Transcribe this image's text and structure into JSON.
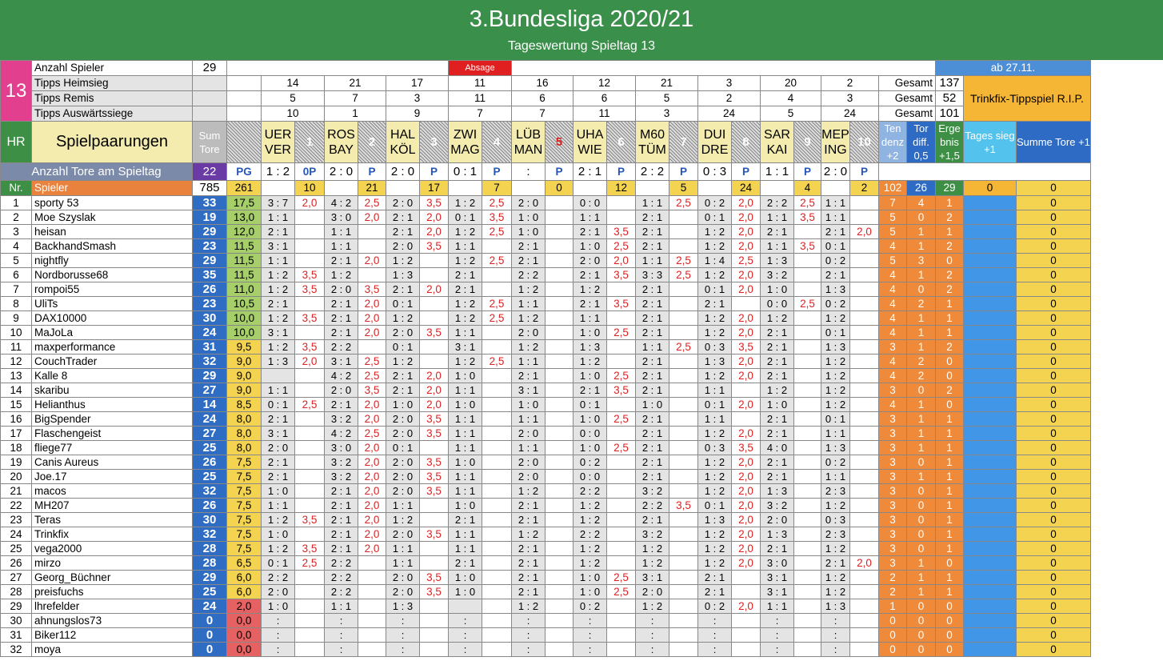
{
  "title": "3.Bundesliga 2020/21",
  "subtitle": "Tageswertung Spieltag 13",
  "matchday": "13",
  "info": {
    "anzahl_label": "Anzahl Spieler",
    "anzahl_value": "29",
    "absage": "Absage",
    "ab_date": "ab 27.11.",
    "heim_label": "Tipps Heimsieg",
    "remis_label": "Tipps Remis",
    "ausw_label": "Tipps Auswärtssiege",
    "heim": [
      "14",
      "21",
      "17",
      "11",
      "16",
      "12",
      "21",
      "3",
      "20",
      "2"
    ],
    "remis": [
      "5",
      "7",
      "3",
      "11",
      "6",
      "6",
      "5",
      "2",
      "4",
      "3"
    ],
    "ausw": [
      "10",
      "1",
      "9",
      "7",
      "7",
      "11",
      "3",
      "24",
      "5",
      "24"
    ],
    "gesamt_label": "Gesamt",
    "gesamt": [
      "137",
      "52",
      "101"
    ],
    "trinkfix": "Trinkfix-Tippspiel R.I.P."
  },
  "header": {
    "hr": "HR",
    "spielpaarungen": "Spielpaarungen",
    "sum_tore": "Sum Tore",
    "matches": [
      {
        "home": "UER",
        "away": "VER",
        "n": "1"
      },
      {
        "home": "ROS",
        "away": "BAY",
        "n": "2"
      },
      {
        "home": "HAL",
        "away": "KÖL",
        "n": "3"
      },
      {
        "home": "ZWI",
        "away": "MAG",
        "n": "4"
      },
      {
        "home": "LÜB",
        "away": "MAN",
        "n": "5"
      },
      {
        "home": "UHA",
        "away": "WIE",
        "n": "6"
      },
      {
        "home": "M60",
        "away": "TÜM",
        "n": "7"
      },
      {
        "home": "DUI",
        "away": "DRE",
        "n": "8"
      },
      {
        "home": "SAR",
        "away": "KAI",
        "n": "9"
      },
      {
        "home": "MEP",
        "away": "ING",
        "n": "10"
      }
    ],
    "tendenz": "Ten denz +2",
    "tordiff": "Tor diff. 0,5",
    "ergebnis": "Erge bnis +1,5",
    "tagessieg": "Tages sieg +1",
    "summetore": "Summe Tore +1"
  },
  "results": {
    "label": "Anzahl Tore am Spieltag",
    "total": "22",
    "pg": "PG",
    "scores": [
      "1 : 2",
      "2 : 0",
      "2 : 0",
      "0 : 1",
      ":",
      "2 : 1",
      "2 : 2",
      "0 : 3",
      "1 : 1",
      "2 : 0"
    ],
    "marks": [
      "0P",
      "P",
      "P",
      "P",
      "P",
      "P",
      "P",
      "P",
      "P",
      "P"
    ]
  },
  "totals": {
    "nr": "Nr.",
    "spieler": "Spieler",
    "sum": "785",
    "pg": "261",
    "points": [
      "10",
      "21",
      "17",
      "7",
      "0",
      "12",
      "5",
      "24",
      "4",
      "2"
    ],
    "ten": "102",
    "tor": "26",
    "erg": "29",
    "tag": "0",
    "sumt": "0"
  },
  "players": [
    {
      "nr": "1",
      "name": "sporty 53",
      "sum": "33",
      "pg": "17,5",
      "tips": [
        "3 : 7",
        "4 : 2",
        "2 : 0",
        "1 : 2",
        "2 : 0",
        "0 : 0",
        "1 : 1",
        "0 : 2",
        "2 : 2",
        "1 : 1"
      ],
      "pts": [
        "2,0",
        "2,5",
        "3,5",
        "2,5",
        "",
        "",
        "2,5",
        "2,0",
        "2,5",
        ""
      ],
      "ten": "7",
      "tor": "4",
      "erg": "1",
      "tag": "",
      "sumt": "0"
    },
    {
      "nr": "2",
      "name": "Moe Szyslak",
      "sum": "19",
      "pg": "13,0",
      "tips": [
        "1 : 1",
        "3 : 0",
        "2 : 1",
        "0 : 1",
        "1 : 0",
        "1 : 1",
        "2 : 1",
        "0 : 1",
        "1 : 1",
        "1 : 1"
      ],
      "pts": [
        "",
        "2,0",
        "2,0",
        "3,5",
        "",
        "",
        "",
        "2,0",
        "3,5",
        ""
      ],
      "ten": "5",
      "tor": "0",
      "erg": "2",
      "tag": "",
      "sumt": "0"
    },
    {
      "nr": "3",
      "name": "heisan",
      "sum": "29",
      "pg": "12,0",
      "tips": [
        "2 : 1",
        "1 : 1",
        "2 : 1",
        "1 : 2",
        "1 : 0",
        "2 : 1",
        "2 : 1",
        "1 : 2",
        "2 : 1",
        "2 : 1"
      ],
      "pts": [
        "",
        "",
        "2,0",
        "2,5",
        "",
        "3,5",
        "",
        "2,0",
        "",
        "2,0"
      ],
      "ten": "5",
      "tor": "1",
      "erg": "1",
      "tag": "",
      "sumt": "0"
    },
    {
      "nr": "4",
      "name": "BackhandSmash",
      "sum": "23",
      "pg": "11,5",
      "tips": [
        "3 : 1",
        "1 : 1",
        "2 : 0",
        "1 : 1",
        "2 : 1",
        "1 : 0",
        "2 : 1",
        "1 : 2",
        "1 : 1",
        "0 : 1"
      ],
      "pts": [
        "",
        "",
        "3,5",
        "",
        "",
        "2,5",
        "",
        "2,0",
        "3,5",
        ""
      ],
      "ten": "4",
      "tor": "1",
      "erg": "2",
      "tag": "",
      "sumt": "0"
    },
    {
      "nr": "5",
      "name": "nightfly",
      "sum": "29",
      "pg": "11,5",
      "tips": [
        "1 : 1",
        "2 : 1",
        "1 : 2",
        "1 : 2",
        "2 : 1",
        "2 : 0",
        "1 : 1",
        "1 : 4",
        "1 : 3",
        "0 : 2"
      ],
      "pts": [
        "",
        "2,0",
        "",
        "2,5",
        "",
        "2,0",
        "2,5",
        "2,5",
        "",
        ""
      ],
      "ten": "5",
      "tor": "3",
      "erg": "0",
      "tag": "",
      "sumt": "0"
    },
    {
      "nr": "6",
      "name": "Nordborusse68",
      "sum": "35",
      "pg": "11,5",
      "tips": [
        "1 : 2",
        "1 : 2",
        "1 : 3",
        "2 : 1",
        "2 : 2",
        "2 : 1",
        "3 : 3",
        "1 : 2",
        "3 : 2",
        "2 : 1"
      ],
      "pts": [
        "3,5",
        "",
        "",
        "",
        "",
        "3,5",
        "2,5",
        "2,0",
        "",
        ""
      ],
      "ten": "4",
      "tor": "1",
      "erg": "2",
      "tag": "",
      "sumt": "0"
    },
    {
      "nr": "7",
      "name": "rompoi55",
      "sum": "26",
      "pg": "11,0",
      "tips": [
        "1 : 2",
        "2 : 0",
        "2 : 1",
        "2 : 1",
        "1 : 2",
        "1 : 2",
        "2 : 1",
        "0 : 1",
        "1 : 0",
        "1 : 3"
      ],
      "pts": [
        "3,5",
        "3,5",
        "2,0",
        "",
        "",
        "",
        "",
        "2,0",
        "",
        ""
      ],
      "ten": "4",
      "tor": "0",
      "erg": "2",
      "tag": "",
      "sumt": "0"
    },
    {
      "nr": "8",
      "name": "UliTs",
      "sum": "23",
      "pg": "10,5",
      "tips": [
        "2 : 1",
        "2 : 1",
        "0 : 1",
        "1 : 2",
        "1 : 1",
        "2 : 1",
        "2 : 1",
        "2 : 1",
        "0 : 0",
        "0 : 2"
      ],
      "pts": [
        "",
        "2,0",
        "",
        "2,5",
        "",
        "3,5",
        "",
        "",
        "2,5",
        ""
      ],
      "ten": "4",
      "tor": "2",
      "erg": "1",
      "tag": "",
      "sumt": "0"
    },
    {
      "nr": "9",
      "name": "DAX10000",
      "sum": "30",
      "pg": "10,0",
      "tips": [
        "1 : 2",
        "2 : 1",
        "1 : 2",
        "1 : 2",
        "1 : 2",
        "1 : 1",
        "2 : 1",
        "1 : 2",
        "1 : 2",
        "1 : 2"
      ],
      "pts": [
        "3,5",
        "2,0",
        "",
        "2,5",
        "",
        "",
        "",
        "2,0",
        "",
        ""
      ],
      "ten": "4",
      "tor": "1",
      "erg": "1",
      "tag": "",
      "sumt": "0"
    },
    {
      "nr": "10",
      "name": "MaJoLa",
      "sum": "24",
      "pg": "10,0",
      "tips": [
        "3 : 1",
        "2 : 1",
        "2 : 0",
        "1 : 1",
        "2 : 0",
        "1 : 0",
        "2 : 1",
        "1 : 2",
        "2 : 1",
        "0 : 1"
      ],
      "pts": [
        "",
        "2,0",
        "3,5",
        "",
        "",
        "2,5",
        "",
        "2,0",
        "",
        ""
      ],
      "ten": "4",
      "tor": "1",
      "erg": "1",
      "tag": "",
      "sumt": "0"
    },
    {
      "nr": "11",
      "name": "maxperformance",
      "sum": "31",
      "pg": "9,5",
      "tips": [
        "1 : 2",
        "2 : 2",
        "0 : 1",
        "3 : 1",
        "1 : 2",
        "1 : 3",
        "1 : 1",
        "0 : 3",
        "2 : 1",
        "1 : 3"
      ],
      "pts": [
        "3,5",
        "",
        "",
        "",
        "",
        "",
        "2,5",
        "3,5",
        "",
        ""
      ],
      "ten": "3",
      "tor": "1",
      "erg": "2",
      "tag": "",
      "sumt": "0"
    },
    {
      "nr": "12",
      "name": "CouchTrader",
      "sum": "32",
      "pg": "9,0",
      "tips": [
        "1 : 3",
        "3 : 1",
        "1 : 2",
        "1 : 2",
        "1 : 1",
        "1 : 2",
        "2 : 1",
        "1 : 3",
        "2 : 1",
        "1 : 2"
      ],
      "pts": [
        "2,0",
        "2,5",
        "",
        "2,5",
        "",
        "",
        "",
        "2,0",
        "",
        ""
      ],
      "ten": "4",
      "tor": "2",
      "erg": "0",
      "tag": "",
      "sumt": "0"
    },
    {
      "nr": "13",
      "name": "Kalle 8",
      "sum": "29",
      "pg": "9,0",
      "tips": [
        "",
        "4 : 2",
        "2 : 1",
        "1 : 0",
        "2 : 1",
        "1 : 0",
        "2 : 1",
        "1 : 2",
        "2 : 1",
        "1 : 2"
      ],
      "pts": [
        "",
        "2,5",
        "2,0",
        "",
        "",
        "2,5",
        "",
        "2,0",
        "",
        ""
      ],
      "ten": "4",
      "tor": "2",
      "erg": "0",
      "tag": "",
      "sumt": "0"
    },
    {
      "nr": "14",
      "name": "skaribu",
      "sum": "27",
      "pg": "9,0",
      "tips": [
        "1 : 1",
        "2 : 0",
        "2 : 1",
        "1 : 1",
        "3 : 1",
        "2 : 1",
        "2 : 1",
        "1 : 1",
        "1 : 2",
        "1 : 2"
      ],
      "pts": [
        "",
        "3,5",
        "2,0",
        "",
        "",
        "3,5",
        "",
        "",
        "",
        ""
      ],
      "ten": "3",
      "tor": "0",
      "erg": "2",
      "tag": "",
      "sumt": "0"
    },
    {
      "nr": "15",
      "name": "Helianthus",
      "sum": "14",
      "pg": "8,5",
      "tips": [
        "0 : 1",
        "2 : 1",
        "1 : 0",
        "1 : 0",
        "1 : 0",
        "0 : 1",
        "1 : 0",
        "0 : 1",
        "1 : 0",
        "1 : 2"
      ],
      "pts": [
        "2,5",
        "2,0",
        "2,0",
        "",
        "",
        "",
        "",
        "2,0",
        "",
        ""
      ],
      "ten": "4",
      "tor": "1",
      "erg": "0",
      "tag": "",
      "sumt": "0"
    },
    {
      "nr": "16",
      "name": "BigSpender",
      "sum": "24",
      "pg": "8,0",
      "tips": [
        "2 : 1",
        "3 : 2",
        "2 : 0",
        "1 : 1",
        "1 : 1",
        "1 : 0",
        "2 : 1",
        "1 : 1",
        "2 : 1",
        "0 : 1"
      ],
      "pts": [
        "",
        "2,0",
        "3,5",
        "",
        "",
        "2,5",
        "",
        "",
        "",
        ""
      ],
      "ten": "3",
      "tor": "1",
      "erg": "1",
      "tag": "",
      "sumt": "0"
    },
    {
      "nr": "17",
      "name": "Flaschengeist",
      "sum": "27",
      "pg": "8,0",
      "tips": [
        "3 : 1",
        "4 : 2",
        "2 : 0",
        "1 : 1",
        "2 : 0",
        "0 : 0",
        "2 : 1",
        "1 : 2",
        "2 : 1",
        "1 : 1"
      ],
      "pts": [
        "",
        "2,5",
        "3,5",
        "",
        "",
        "",
        "",
        "2,0",
        "",
        ""
      ],
      "ten": "3",
      "tor": "1",
      "erg": "1",
      "tag": "",
      "sumt": "0"
    },
    {
      "nr": "18",
      "name": "fliege77",
      "sum": "25",
      "pg": "8,0",
      "tips": [
        "2 : 0",
        "3 : 0",
        "0 : 1",
        "1 : 1",
        "1 : 1",
        "1 : 0",
        "2 : 1",
        "0 : 3",
        "4 : 0",
        "1 : 3"
      ],
      "pts": [
        "",
        "2,0",
        "",
        "",
        "",
        "2,5",
        "",
        "3,5",
        "",
        ""
      ],
      "ten": "3",
      "tor": "1",
      "erg": "1",
      "tag": "",
      "sumt": "0"
    },
    {
      "nr": "19",
      "name": "Canis Aureus",
      "sum": "26",
      "pg": "7,5",
      "tips": [
        "2 : 1",
        "3 : 2",
        "2 : 0",
        "1 : 0",
        "2 : 0",
        "0 : 2",
        "2 : 1",
        "1 : 2",
        "2 : 1",
        "0 : 2"
      ],
      "pts": [
        "",
        "2,0",
        "3,5",
        "",
        "",
        "",
        "",
        "2,0",
        "",
        ""
      ],
      "ten": "3",
      "tor": "0",
      "erg": "1",
      "tag": "",
      "sumt": "0"
    },
    {
      "nr": "20",
      "name": "Joe.17",
      "sum": "25",
      "pg": "7,5",
      "tips": [
        "2 : 1",
        "3 : 2",
        "2 : 0",
        "1 : 1",
        "2 : 0",
        "0 : 0",
        "2 : 1",
        "1 : 2",
        "2 : 1",
        "1 : 1"
      ],
      "pts": [
        "",
        "2,0",
        "3,5",
        "",
        "",
        "",
        "",
        "2,0",
        "",
        ""
      ],
      "ten": "3",
      "tor": "1",
      "erg": "1",
      "tag": "",
      "sumt": "0"
    },
    {
      "nr": "21",
      "name": "macos",
      "sum": "32",
      "pg": "7,5",
      "tips": [
        "1 : 0",
        "2 : 1",
        "2 : 0",
        "1 : 1",
        "1 : 2",
        "2 : 2",
        "3 : 2",
        "1 : 2",
        "1 : 3",
        "2 : 3"
      ],
      "pts": [
        "",
        "2,0",
        "3,5",
        "",
        "",
        "",
        "",
        "2,0",
        "",
        ""
      ],
      "ten": "3",
      "tor": "0",
      "erg": "1",
      "tag": "",
      "sumt": "0"
    },
    {
      "nr": "22",
      "name": "MH207",
      "sum": "26",
      "pg": "7,5",
      "tips": [
        "1 : 1",
        "2 : 1",
        "1 : 1",
        "1 : 0",
        "2 : 1",
        "1 : 2",
        "2 : 2",
        "0 : 1",
        "3 : 2",
        "1 : 2"
      ],
      "pts": [
        "",
        "2,0",
        "",
        "",
        "",
        "",
        "3,5",
        "2,0",
        "",
        ""
      ],
      "ten": "3",
      "tor": "0",
      "erg": "1",
      "tag": "",
      "sumt": "0"
    },
    {
      "nr": "23",
      "name": "Teras",
      "sum": "30",
      "pg": "7,5",
      "tips": [
        "1 : 2",
        "2 : 1",
        "1 : 2",
        "2 : 1",
        "2 : 1",
        "1 : 2",
        "2 : 1",
        "1 : 3",
        "2 : 0",
        "0 : 3"
      ],
      "pts": [
        "3,5",
        "2,0",
        "",
        "",
        "",
        "",
        "",
        "2,0",
        "",
        ""
      ],
      "ten": "3",
      "tor": "0",
      "erg": "1",
      "tag": "",
      "sumt": "0"
    },
    {
      "nr": "24",
      "name": "Trinkfix",
      "sum": "32",
      "pg": "7,5",
      "tips": [
        "1 : 0",
        "2 : 1",
        "2 : 0",
        "1 : 1",
        "1 : 2",
        "2 : 2",
        "3 : 2",
        "1 : 2",
        "1 : 3",
        "2 : 3"
      ],
      "pts": [
        "",
        "2,0",
        "3,5",
        "",
        "",
        "",
        "",
        "2,0",
        "",
        ""
      ],
      "ten": "3",
      "tor": "0",
      "erg": "1",
      "tag": "",
      "sumt": "0"
    },
    {
      "nr": "25",
      "name": "vega2000",
      "sum": "28",
      "pg": "7,5",
      "tips": [
        "1 : 2",
        "2 : 1",
        "1 : 1",
        "1 : 1",
        "2 : 1",
        "1 : 2",
        "1 : 2",
        "1 : 2",
        "2 : 1",
        "1 : 2"
      ],
      "pts": [
        "3,5",
        "2,0",
        "",
        "",
        "",
        "",
        "",
        "2,0",
        "",
        ""
      ],
      "ten": "3",
      "tor": "0",
      "erg": "1",
      "tag": "",
      "sumt": "0"
    },
    {
      "nr": "26",
      "name": "mirzo",
      "sum": "28",
      "pg": "6,5",
      "tips": [
        "0 : 1",
        "2 : 2",
        "1 : 1",
        "2 : 1",
        "2 : 1",
        "1 : 2",
        "1 : 2",
        "1 : 2",
        "3 : 0",
        "2 : 1"
      ],
      "pts": [
        "2,5",
        "",
        "",
        "",
        "",
        "",
        "",
        "2,0",
        "",
        "2,0"
      ],
      "ten": "3",
      "tor": "1",
      "erg": "0",
      "tag": "",
      "sumt": "0"
    },
    {
      "nr": "27",
      "name": "Georg_Büchner",
      "sum": "29",
      "pg": "6,0",
      "tips": [
        "2 : 2",
        "2 : 2",
        "2 : 0",
        "1 : 0",
        "2 : 1",
        "1 : 0",
        "3 : 1",
        "2 : 1",
        "3 : 1",
        "1 : 2"
      ],
      "pts": [
        "",
        "",
        "3,5",
        "",
        "",
        "2,5",
        "",
        "",
        "",
        ""
      ],
      "ten": "2",
      "tor": "1",
      "erg": "1",
      "tag": "",
      "sumt": "0"
    },
    {
      "nr": "28",
      "name": "preisfuchs",
      "sum": "25",
      "pg": "6,0",
      "tips": [
        "2 : 0",
        "2 : 2",
        "2 : 0",
        "1 : 0",
        "2 : 1",
        "1 : 0",
        "2 : 0",
        "2 : 1",
        "3 : 1",
        "1 : 2"
      ],
      "pts": [
        "",
        "",
        "3,5",
        "",
        "",
        "2,5",
        "",
        "",
        "",
        ""
      ],
      "ten": "2",
      "tor": "1",
      "erg": "1",
      "tag": "",
      "sumt": "0"
    },
    {
      "nr": "29",
      "name": "lhrefelder",
      "sum": "24",
      "pg": "2,0",
      "tips": [
        "1 : 0",
        "1 : 1",
        "1 : 3",
        "",
        "1 : 2",
        "0 : 2",
        "1 : 2",
        "0 : 2",
        "1 : 1",
        "1 : 3"
      ],
      "pts": [
        "",
        "",
        "",
        "",
        "",
        "",
        "",
        "2,0",
        "",
        ""
      ],
      "ten": "1",
      "tor": "0",
      "erg": "0",
      "tag": "",
      "sumt": "0"
    },
    {
      "nr": "30",
      "name": "ahnungslos73",
      "sum": "0",
      "pg": "0,0",
      "tips": [
        ":",
        ":",
        ":",
        ":",
        ":",
        ":",
        ":",
        ":",
        ":",
        ":"
      ],
      "pts": [
        "",
        "",
        "",
        "",
        "",
        "",
        "",
        "",
        "",
        ""
      ],
      "ten": "0",
      "tor": "0",
      "erg": "0",
      "tag": "",
      "sumt": "0"
    },
    {
      "nr": "31",
      "name": "Biker112",
      "sum": "0",
      "pg": "0,0",
      "tips": [
        ":",
        ":",
        ":",
        ":",
        ":",
        ":",
        ":",
        ":",
        ":",
        ":"
      ],
      "pts": [
        "",
        "",
        "",
        "",
        "",
        "",
        "",
        "",
        "",
        ""
      ],
      "ten": "0",
      "tor": "0",
      "erg": "0",
      "tag": "",
      "sumt": "0"
    },
    {
      "nr": "32",
      "name": "moya",
      "sum": "0",
      "pg": "0,0",
      "tips": [
        ":",
        ":",
        ":",
        ":",
        ":",
        ":",
        ":",
        ":",
        ":",
        ":"
      ],
      "pts": [
        "",
        "",
        "",
        "",
        "",
        "",
        "",
        "",
        "",
        ""
      ],
      "ten": "0",
      "tor": "0",
      "erg": "0",
      "tag": "",
      "sumt": "0"
    }
  ]
}
